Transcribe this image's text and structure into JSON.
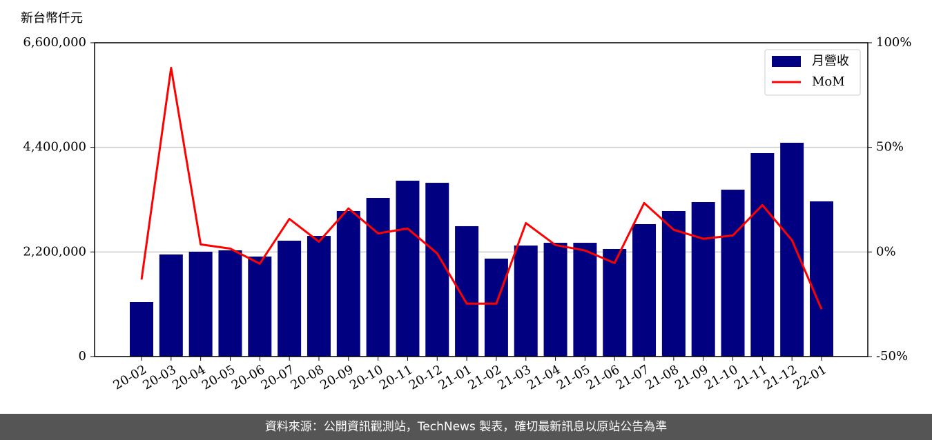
{
  "chart_data": {
    "type": "bar-line",
    "y_label": "新台幣仟元",
    "categories": [
      "20-02",
      "20-03",
      "20-04",
      "20-05",
      "20-06",
      "20-07",
      "20-08",
      "20-09",
      "20-10",
      "20-11",
      "20-12",
      "21-01",
      "21-02",
      "21-03",
      "21-04",
      "21-05",
      "21-06",
      "21-07",
      "21-08",
      "21-09",
      "21-10",
      "21-11",
      "21-12",
      "22-01"
    ],
    "series": [
      {
        "name": "月營收",
        "color": "#000080",
        "kind": "bar",
        "values": [
          1146000,
          2147000,
          2205000,
          2234000,
          2103000,
          2437000,
          2538000,
          3061000,
          3336000,
          3699000,
          3655000,
          2742000,
          2060000,
          2335000,
          2393000,
          2393000,
          2263000,
          2785000,
          3061000,
          3249000,
          3510000,
          4279000,
          4497000,
          3264000
        ]
      },
      {
        "name": "MoM",
        "color": "#ff0000",
        "kind": "line",
        "axis": "y2",
        "values": [
          -13.2,
          88,
          3.6,
          1.6,
          -5.6,
          15.8,
          4.9,
          20.8,
          8.9,
          11.2,
          -0.7,
          -24.7,
          -24.7,
          13.8,
          3.3,
          0.7,
          -5.3,
          23.4,
          10.6,
          6.3,
          7.9,
          22.4,
          5.6,
          -27.4
        ]
      }
    ],
    "ylim": [
      0,
      6600000
    ],
    "yticks": [
      0,
      {
        "value": 2200000,
        "label": "2,200,000"
      },
      {
        "value": 4400000,
        "label": "4,400,000"
      },
      {
        "value": 6600000,
        "label": "6,600,000"
      }
    ],
    "y2lim": [
      -50,
      100
    ],
    "y2ticks": [
      {
        "value": -50,
        "label": "-50%"
      },
      {
        "value": 0,
        "label": "0%"
      },
      {
        "value": 50,
        "label": "50%"
      },
      {
        "value": 100,
        "label": "100%"
      }
    ],
    "grid": true,
    "legend": "upper right"
  },
  "footer": "資料來源：公開資訊觀測站，TechNews 製表，確切最新訊息以原站公告為準"
}
